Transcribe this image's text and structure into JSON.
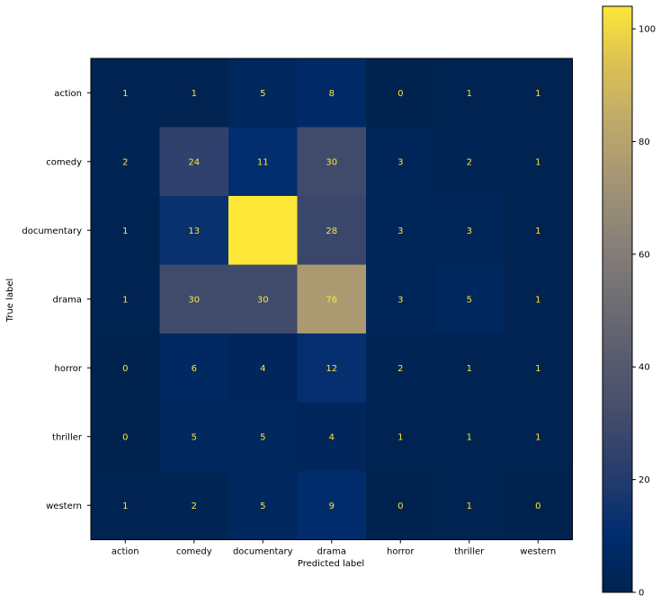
{
  "chart_data": {
    "type": "heatmap",
    "title": "",
    "xlabel": "Predicted label",
    "ylabel": "True label",
    "x_categories": [
      "action",
      "comedy",
      "documentary",
      "drama",
      "horror",
      "thriller",
      "western"
    ],
    "y_categories": [
      "action",
      "comedy",
      "documentary",
      "drama",
      "horror",
      "thriller",
      "western"
    ],
    "values": [
      [
        1,
        1,
        5,
        8,
        0,
        1,
        1
      ],
      [
        2,
        24,
        11,
        30,
        3,
        2,
        1
      ],
      [
        1,
        13,
        104,
        28,
        3,
        3,
        1
      ],
      [
        1,
        30,
        30,
        76,
        3,
        5,
        1
      ],
      [
        0,
        6,
        4,
        12,
        2,
        1,
        1
      ],
      [
        0,
        5,
        5,
        4,
        1,
        1,
        1
      ],
      [
        1,
        2,
        5,
        9,
        0,
        1,
        0
      ]
    ],
    "colormap": "cividis",
    "colorbar": {
      "range": [
        0,
        104
      ],
      "ticks": [
        0,
        20,
        40,
        60,
        80,
        100
      ],
      "tick_labels": [
        "0",
        "20",
        "40",
        "60",
        "80",
        "100"
      ]
    },
    "cell_text_color": "#fde737",
    "grid": false
  }
}
